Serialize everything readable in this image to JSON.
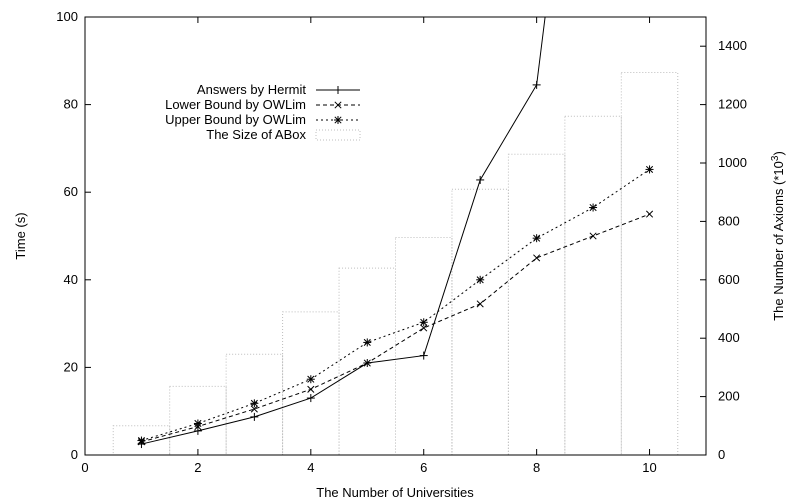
{
  "chart_data": {
    "type": "line",
    "xlabel": "The Number of Universities",
    "ylabel": "Time (s)",
    "y2label_main": "The Number of Axioms (*10",
    "y2label_exp": "3",
    "y2label_close": ")",
    "xlim": [
      0,
      11
    ],
    "ylim": [
      0,
      100
    ],
    "y2lim": [
      0,
      1500
    ],
    "xticks": [
      "0",
      "2",
      "4",
      "6",
      "8",
      "10"
    ],
    "yticks": [
      "0",
      "20",
      "40",
      "60",
      "80",
      "100"
    ],
    "y2ticks": [
      "0",
      "200",
      "400",
      "600",
      "800",
      "1000",
      "1200",
      "1400"
    ],
    "grid": false,
    "legend_position": "top-left",
    "legend": [
      "Answers by Hermit",
      "Lower Bound by OWLim",
      "Upper Bound by OWLim",
      "The Size of ABox"
    ],
    "x": [
      1,
      2,
      3,
      4,
      5,
      6,
      7,
      8,
      9,
      10
    ],
    "series": [
      {
        "name": "Answers by Hermit",
        "axis": "left",
        "style": "solid",
        "marker": "plus",
        "x": [
          1,
          2,
          3,
          4,
          5,
          6,
          7,
          8,
          8.15
        ],
        "values": [
          2.5,
          5.5,
          8.7,
          13,
          21,
          22.7,
          62.8,
          84.5,
          100
        ]
      },
      {
        "name": "Lower Bound by OWLim",
        "axis": "left",
        "style": "dashed",
        "marker": "x",
        "x": [
          1,
          2,
          3,
          4,
          5,
          6,
          7,
          8,
          9,
          10
        ],
        "values": [
          3,
          6.5,
          10.5,
          15,
          21,
          29,
          34.5,
          45,
          50,
          55
        ]
      },
      {
        "name": "Upper Bound by OWLim",
        "axis": "left",
        "style": "dotted",
        "marker": "star",
        "x": [
          1,
          2,
          3,
          4,
          5,
          6,
          7,
          8,
          9,
          10
        ],
        "values": [
          3.3,
          7.2,
          11.8,
          17.3,
          25.7,
          30.3,
          40,
          49.5,
          56.5,
          65.2
        ]
      },
      {
        "name": "The Size of ABox",
        "axis": "right",
        "style": "bar-outline",
        "x": [
          1,
          2,
          3,
          4,
          5,
          6,
          7,
          8,
          9,
          10
        ],
        "values": [
          100,
          235,
          345,
          490,
          640,
          745,
          910,
          1030,
          1160,
          1310
        ]
      }
    ]
  }
}
